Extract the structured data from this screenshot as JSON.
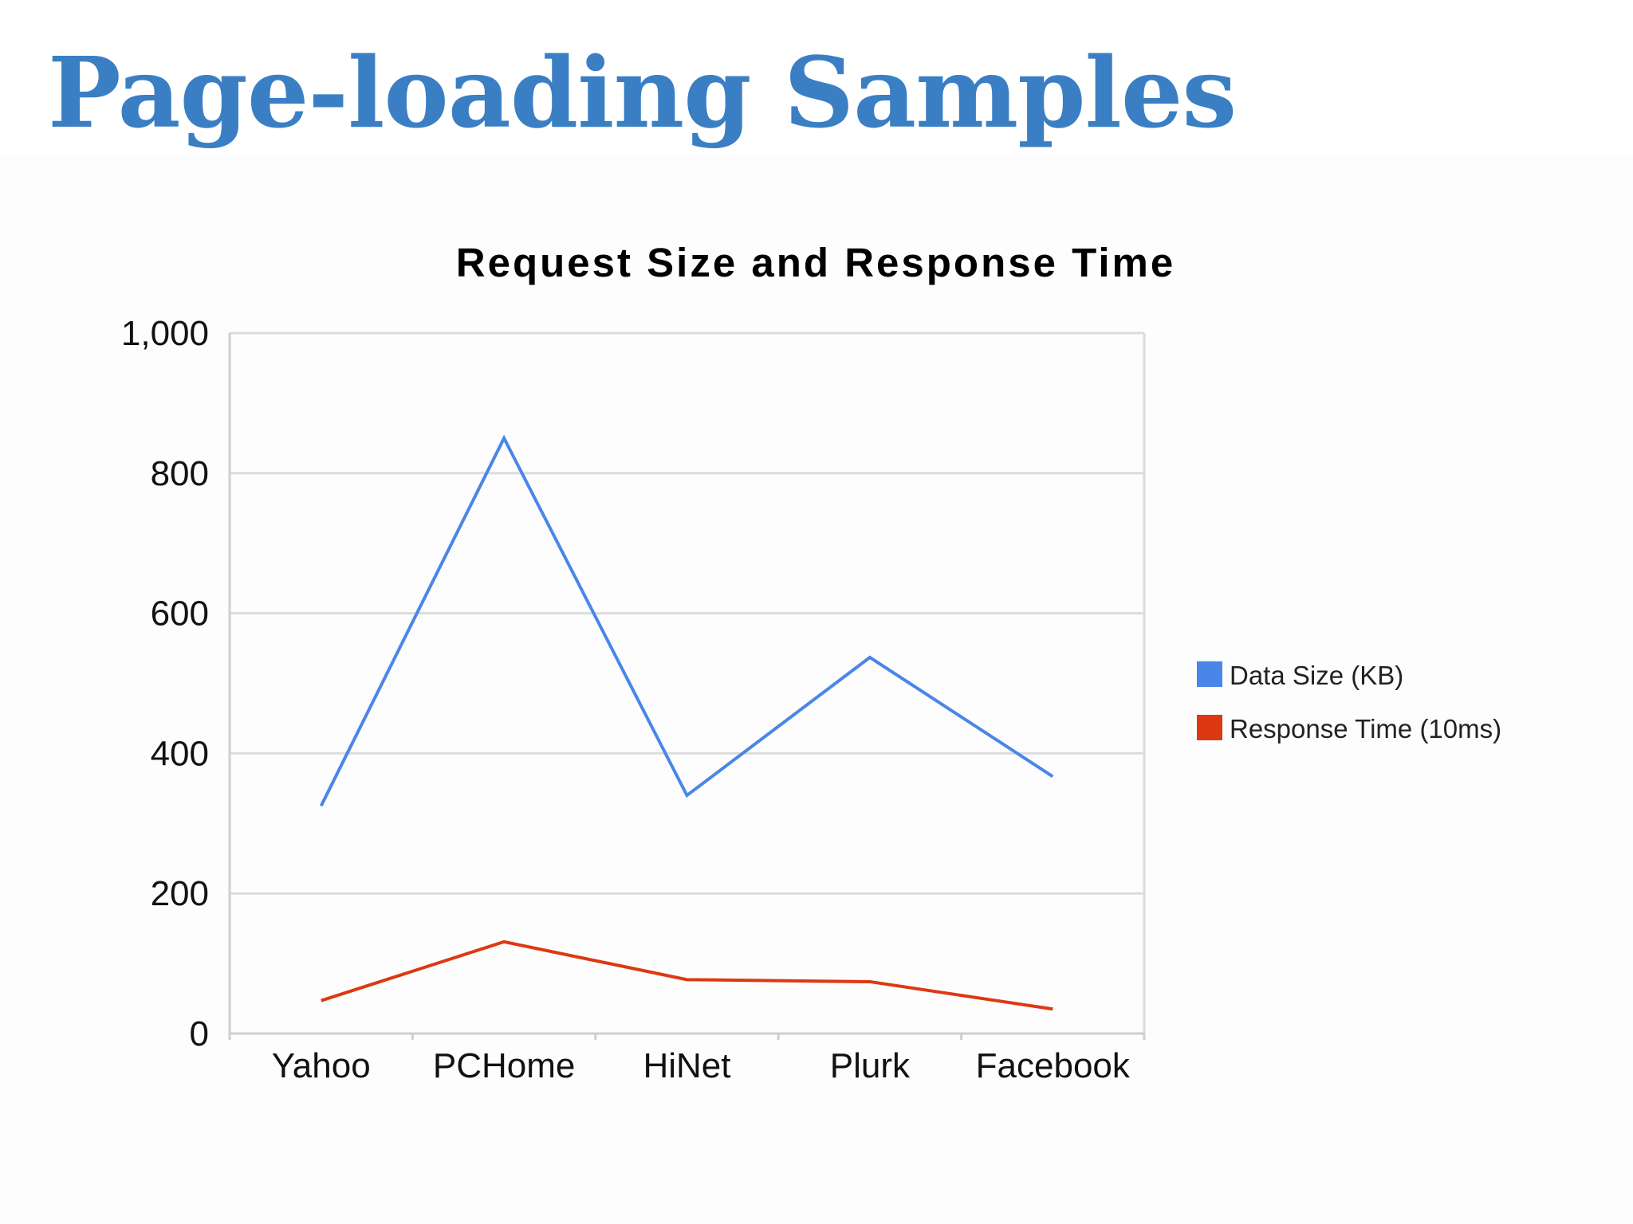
{
  "slide": {
    "title": "Page-loading Samples",
    "title_color": "#3a7fc4"
  },
  "chart_data": {
    "type": "line",
    "title": "Request Size and Response Time",
    "xlabel": "",
    "ylabel": "",
    "categories": [
      "Yahoo",
      "PCHome",
      "HiNet",
      "Plurk",
      "Facebook"
    ],
    "ylim": [
      0,
      1000
    ],
    "yticks": [
      0,
      200,
      400,
      600,
      800,
      1000
    ],
    "ytick_labels": [
      "0",
      "200",
      "400",
      "600",
      "800",
      "1,000"
    ],
    "grid": true,
    "legend_position": "right",
    "series": [
      {
        "name": "Data Size (KB)",
        "color": "#4a86e8",
        "values": [
          325,
          850,
          340,
          537,
          367
        ]
      },
      {
        "name": "Response Time (10ms)",
        "color": "#dc3912",
        "values": [
          47,
          131,
          77,
          74,
          35
        ]
      }
    ]
  }
}
